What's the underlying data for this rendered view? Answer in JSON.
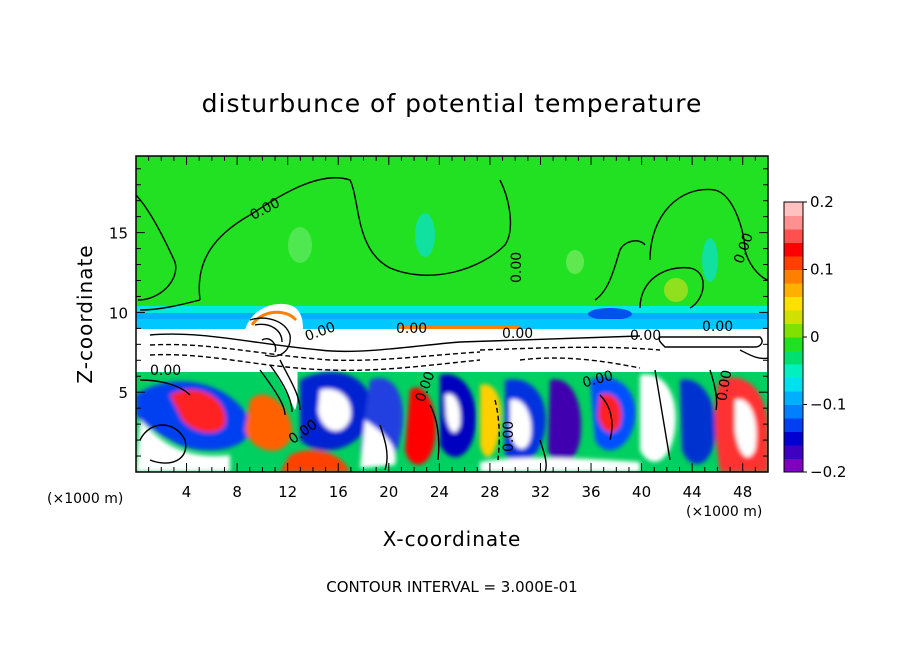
{
  "chart_data": {
    "type": "heatmap",
    "title": "disturbunce of potential temperature",
    "xlabel": "X-coordinate",
    "ylabel": "Z-coordinate",
    "x_unit": "(×1000 m)",
    "z_unit": "(×1000 m)",
    "xlim": [
      0,
      50
    ],
    "ylim": [
      0,
      19.8
    ],
    "x_ticks": [
      "4",
      "8",
      "12",
      "16",
      "20",
      "24",
      "28",
      "32",
      "36",
      "40",
      "44",
      "48"
    ],
    "y_ticks": [
      "5",
      "10",
      "15"
    ],
    "colorbar": {
      "range": [
        -0.2,
        0.2
      ],
      "ticks": [
        "0.2",
        "0.1",
        "0",
        "−0.1",
        "−0.2"
      ],
      "colors": [
        "#8000c0",
        "#4000c0",
        "#0000d0",
        "#0040f0",
        "#0080ff",
        "#00b0ff",
        "#00e0f0",
        "#00f0c0",
        "#00e070",
        "#20e020",
        "#80e000",
        "#d0e000",
        "#ffe000",
        "#ffb000",
        "#ff8000",
        "#ff4000",
        "#ff0000",
        "#ff5050",
        "#ff9090",
        "#ffc0c0"
      ]
    },
    "contour_interval_text": "CONTOUR INTERVAL = 3.000E-01",
    "contour_labels": [
      "0.00",
      "0.00",
      "0.00",
      "0.00",
      "0.00",
      "0.00",
      "0.00",
      "0.00",
      "0.00",
      "0.00",
      "0.00",
      "0.00",
      "0.00",
      "0.00"
    ]
  }
}
